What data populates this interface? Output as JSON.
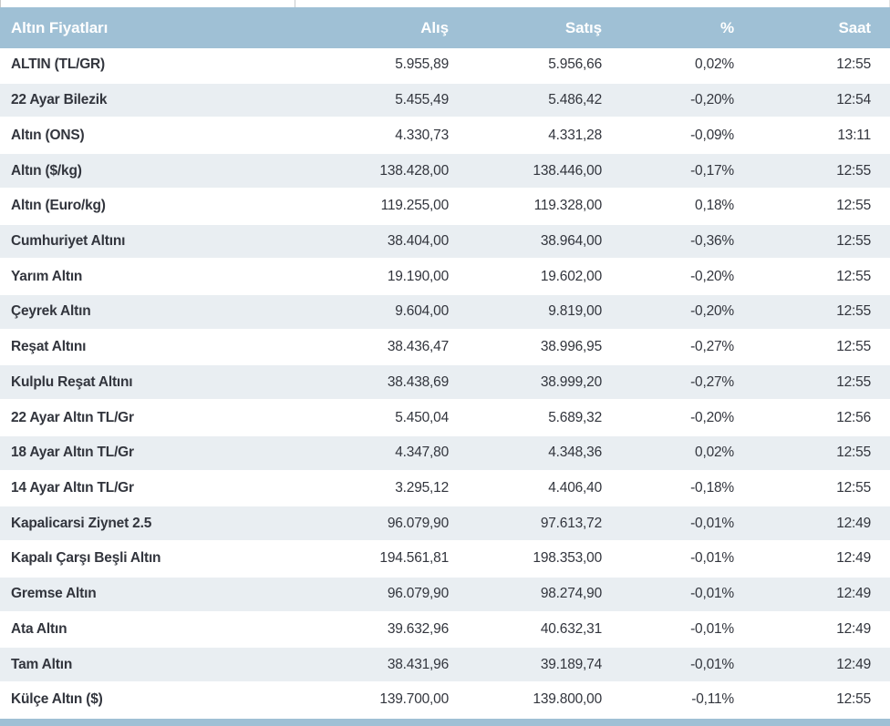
{
  "table": {
    "headers": {
      "name": "Altın Fiyatları",
      "alis": "Alış",
      "satis": "Satış",
      "pct": "%",
      "saat": "Saat"
    },
    "rows": [
      {
        "name": "ALTIN (TL/GR)",
        "alis": "5.955,89",
        "satis": "5.956,66",
        "pct": "0,02%",
        "saat": "12:55"
      },
      {
        "name": "22 Ayar Bilezik",
        "alis": "5.455,49",
        "satis": "5.486,42",
        "pct": "-0,20%",
        "saat": "12:54"
      },
      {
        "name": "Altın (ONS)",
        "alis": "4.330,73",
        "satis": "4.331,28",
        "pct": "-0,09%",
        "saat": "13:11"
      },
      {
        "name": "Altın ($/kg)",
        "alis": "138.428,00",
        "satis": "138.446,00",
        "pct": "-0,17%",
        "saat": "12:55"
      },
      {
        "name": "Altın (Euro/kg)",
        "alis": "119.255,00",
        "satis": "119.328,00",
        "pct": "0,18%",
        "saat": "12:55"
      },
      {
        "name": "Cumhuriyet Altını",
        "alis": "38.404,00",
        "satis": "38.964,00",
        "pct": "-0,36%",
        "saat": "12:55"
      },
      {
        "name": "Yarım Altın",
        "alis": "19.190,00",
        "satis": "19.602,00",
        "pct": "-0,20%",
        "saat": "12:55"
      },
      {
        "name": "Çeyrek Altın",
        "alis": "9.604,00",
        "satis": "9.819,00",
        "pct": "-0,20%",
        "saat": "12:55"
      },
      {
        "name": "Reşat Altını",
        "alis": "38.436,47",
        "satis": "38.996,95",
        "pct": "-0,27%",
        "saat": "12:55"
      },
      {
        "name": "Kulplu Reşat Altını",
        "alis": "38.438,69",
        "satis": "38.999,20",
        "pct": "-0,27%",
        "saat": "12:55"
      },
      {
        "name": "22 Ayar Altın TL/Gr",
        "alis": "5.450,04",
        "satis": "5.689,32",
        "pct": "-0,20%",
        "saat": "12:56"
      },
      {
        "name": "18 Ayar Altın TL/Gr",
        "alis": "4.347,80",
        "satis": "4.348,36",
        "pct": "0,02%",
        "saat": "12:55"
      },
      {
        "name": "14 Ayar Altın TL/Gr",
        "alis": "3.295,12",
        "satis": "4.406,40",
        "pct": "-0,18%",
        "saat": "12:55"
      },
      {
        "name": "Kapalicarsi Ziynet 2.5",
        "alis": "96.079,90",
        "satis": "97.613,72",
        "pct": "-0,01%",
        "saat": "12:49"
      },
      {
        "name": "Kapalı Çarşı Beşli Altın",
        "alis": "194.561,81",
        "satis": "198.353,00",
        "pct": "-0,01%",
        "saat": "12:49"
      },
      {
        "name": "Gremse Altın",
        "alis": "96.079,90",
        "satis": "98.274,90",
        "pct": "-0,01%",
        "saat": "12:49"
      },
      {
        "name": "Ata Altın",
        "alis": "39.632,96",
        "satis": "40.632,31",
        "pct": "-0,01%",
        "saat": "12:49"
      },
      {
        "name": "Tam Altın",
        "alis": "38.431,96",
        "satis": "39.189,74",
        "pct": "-0,01%",
        "saat": "12:49"
      },
      {
        "name": "Külçe Altın ($)",
        "alis": "139.700,00",
        "satis": "139.800,00",
        "pct": "-0,11%",
        "saat": "12:55"
      }
    ]
  },
  "colors": {
    "header_bg": "#9fc0d5",
    "alt_row_bg": "#e9eef2",
    "text": "#32353d",
    "header_text": "#ffffff"
  }
}
